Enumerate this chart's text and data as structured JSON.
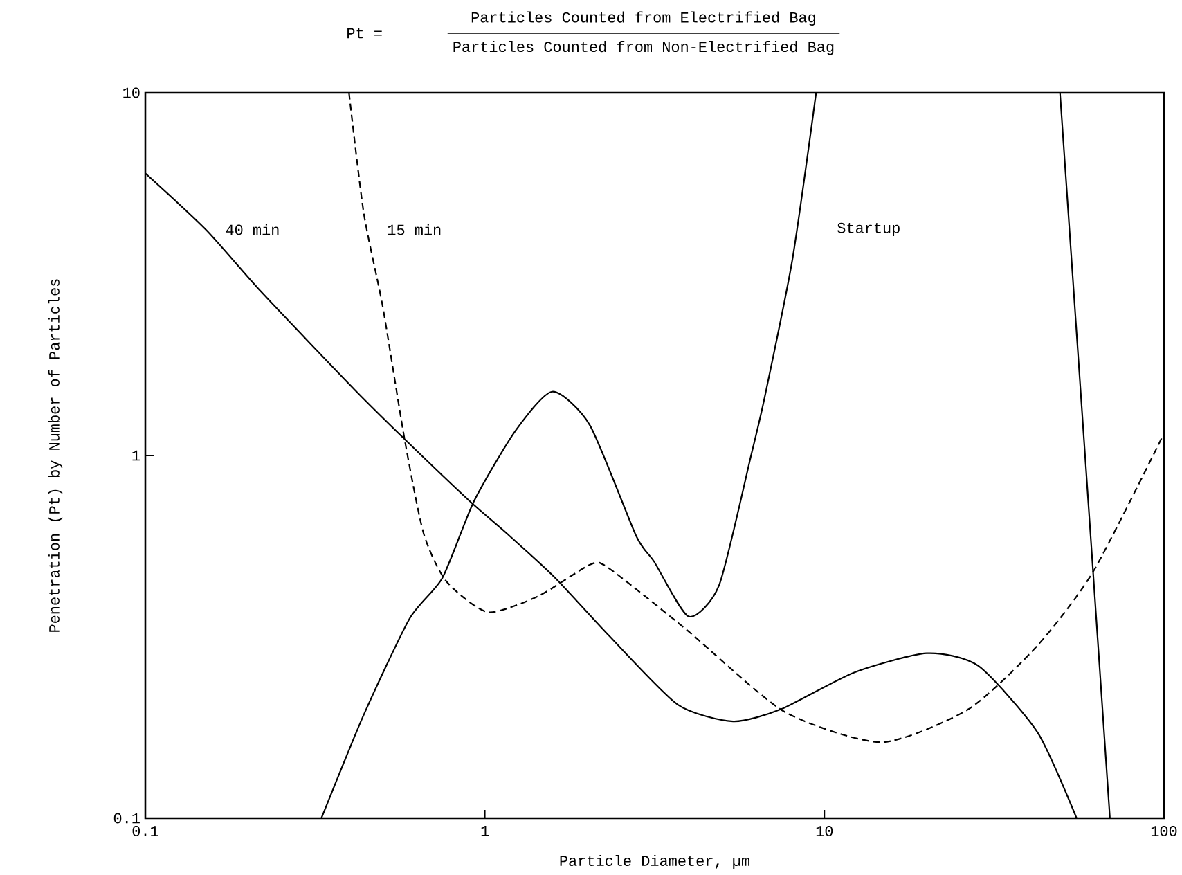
{
  "chart_data": {
    "type": "line",
    "title": "Particles Counted from Electrified Bag",
    "subtitle": "Particles Counted from Non-Electrified Bag",
    "annotations": [
      "Pt ="
    ],
    "xlabel": "Particle Diameter, µm",
    "ylabel": "Penetration (Pt) by Number of Particles",
    "log": "xy",
    "xlim": [
      0.1,
      100
    ],
    "ylim": [
      0.1,
      10
    ],
    "xticks": [
      0.1,
      1,
      10,
      100
    ],
    "yticks": [
      0.1,
      1,
      10
    ],
    "series": [
      {
        "name": "40 min",
        "color": "#000000",
        "line_style": "solid",
        "x": [
          0.1,
          0.151,
          0.22,
          0.413,
          0.58,
          0.9,
          1.16,
          1.61,
          2.31,
          3.69,
          5.38,
          7.47,
          12.2,
          20.0,
          28.4,
          42.5,
          55.3
        ],
        "values": [
          6.0,
          4.19,
          2.82,
          1.52,
          1.11,
          0.75,
          0.61,
          0.46,
          0.32,
          0.206,
          0.185,
          0.2,
          0.252,
          0.285,
          0.263,
          0.172,
          0.1
        ]
      },
      {
        "name": "15 min",
        "color": "#000000",
        "line_style": "dashed",
        "x": [
          0.398,
          0.44,
          0.5,
          0.58,
          0.66,
          0.77,
          1.02,
          1.44,
          2.04,
          2.31,
          3.94,
          7.6,
          14.7,
          26.6,
          42.5,
          62,
          100
        ],
        "values": [
          10,
          4.65,
          2.58,
          1.11,
          0.61,
          0.45,
          0.37,
          0.41,
          0.5,
          0.49,
          0.33,
          0.197,
          0.162,
          0.2,
          0.3,
          0.48,
          1.15
        ]
      },
      {
        "name": "Startup",
        "color": "#000000",
        "line_style": "solid",
        "x": [
          0.33,
          0.44,
          0.6,
          0.75,
          0.93,
          1.23,
          1.58,
          2.04,
          2.79,
          3.15,
          3.98,
          4.9,
          6.08,
          6.67,
          8.05,
          9.45,
          null,
          49.4,
          60.8,
          69.3
        ],
        "values": [
          0.1,
          0.193,
          0.355,
          0.46,
          0.75,
          1.17,
          1.5,
          1.21,
          0.6,
          0.51,
          0.36,
          0.44,
          1.0,
          1.45,
          3.48,
          10,
          null,
          10,
          0.6,
          0.1
        ]
      }
    ]
  }
}
